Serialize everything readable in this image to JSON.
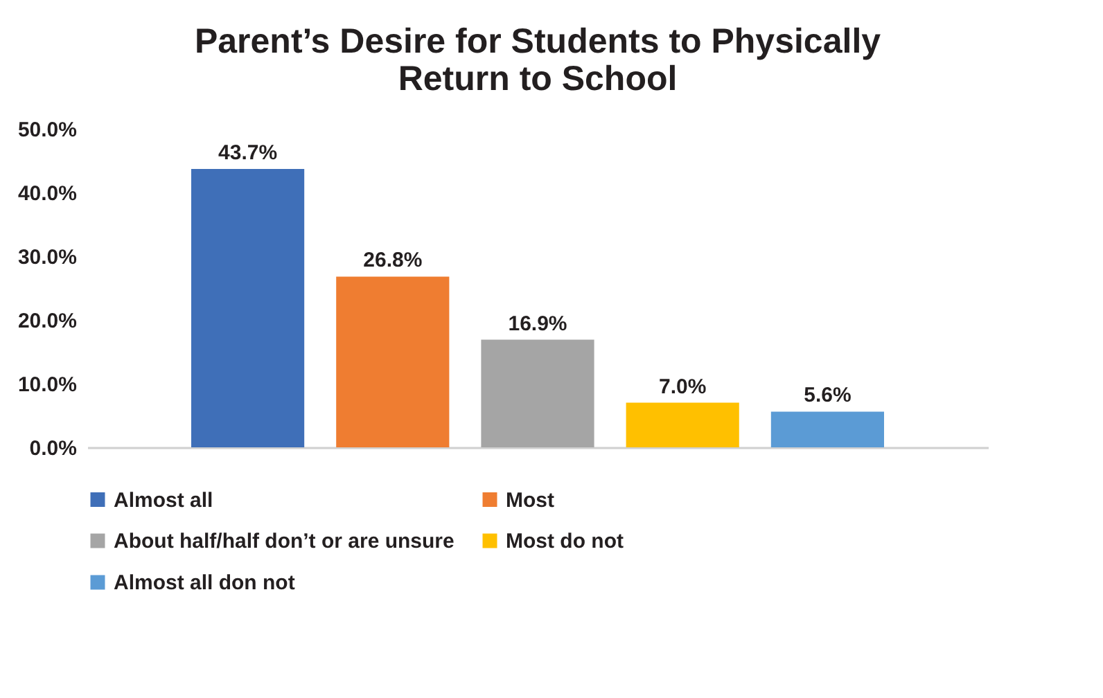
{
  "chart_data": {
    "type": "bar",
    "title": "Parent’s Desire for Students to Physically Return to School",
    "categories": [
      null
    ],
    "series": [
      {
        "name": "Almost all",
        "color": "#3f6fb8",
        "values": [
          43.7
        ],
        "value_labels": [
          "43.7%"
        ]
      },
      {
        "name": "Most",
        "color": "#ef7d31",
        "values": [
          26.8
        ],
        "value_labels": [
          "26.8%"
        ]
      },
      {
        "name": "About half/half don’t or are unsure",
        "color": "#a5a5a5",
        "values": [
          16.9
        ],
        "value_labels": [
          "16.9%"
        ]
      },
      {
        "name": "Most do not",
        "color": "#ffc000",
        "values": [
          7.0
        ],
        "value_labels": [
          "7.0%"
        ]
      },
      {
        "name": "Almost all don not",
        "color": "#5b9bd5",
        "values": [
          5.6
        ],
        "value_labels": [
          "5.6%"
        ]
      }
    ],
    "ylim": [
      0,
      50
    ],
    "yticks": [
      {
        "value": 0,
        "label": "0.0%"
      },
      {
        "value": 10,
        "label": "10.0%"
      },
      {
        "value": 20,
        "label": "20.0%"
      },
      {
        "value": 30,
        "label": "30.0%"
      },
      {
        "value": 40,
        "label": "40.0%"
      },
      {
        "value": 50,
        "label": "50.0%"
      }
    ],
    "legend": "bottom"
  }
}
